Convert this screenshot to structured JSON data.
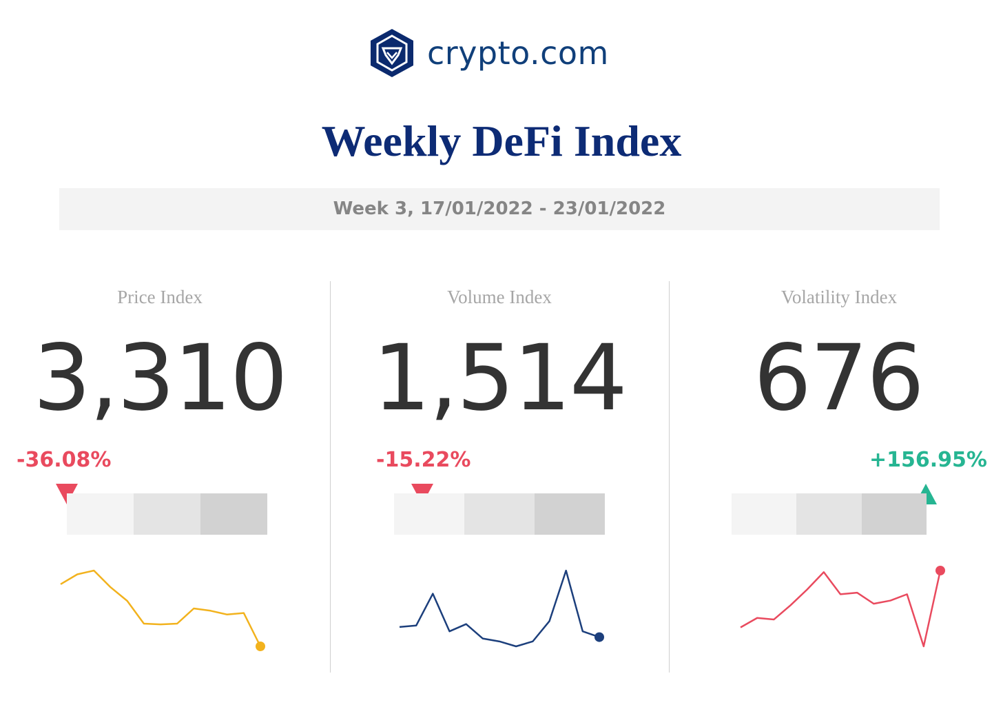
{
  "brand": {
    "name": "crypto.com",
    "color": "#103f7a"
  },
  "title": "Weekly DeFi Index",
  "week": "Week 3, 17/01/2022 - 23/01/2022",
  "colors": {
    "down": "#e94a5e",
    "up": "#26b592",
    "text": "#333333"
  },
  "panels": [
    {
      "label": "Price Index",
      "value": "3,310",
      "change": "-36.08%",
      "direction": "down",
      "level": 0.0,
      "spark_color": "#f2b21d"
    },
    {
      "label": "Volume Index",
      "value": "1,514",
      "change": "-15.22%",
      "direction": "down",
      "level": 0.13,
      "spark_color": "#1c3f7c"
    },
    {
      "label": "Volatility Index",
      "value": "676",
      "change": "+156.95%",
      "direction": "up",
      "level": 0.95,
      "spark_color": "#e94a5e"
    }
  ],
  "chart_data": [
    {
      "type": "line",
      "name": "Price Index",
      "values": [
        3.92,
        4.05,
        4.1,
        3.88,
        3.7,
        3.4,
        3.39,
        3.4,
        3.6,
        3.57,
        3.52,
        3.54,
        3.1
      ]
    },
    {
      "type": "line",
      "name": "Volume Index",
      "values": [
        1.95,
        2.0,
        3.1,
        1.8,
        2.05,
        1.55,
        1.45,
        1.28,
        1.45,
        2.15,
        3.9,
        1.8,
        1.6
      ]
    },
    {
      "type": "line",
      "name": "Volatility Index",
      "values": [
        1.8,
        2.1,
        2.05,
        2.5,
        3.0,
        3.55,
        2.85,
        2.9,
        2.55,
        2.65,
        2.85,
        1.2,
        3.6
      ]
    }
  ]
}
